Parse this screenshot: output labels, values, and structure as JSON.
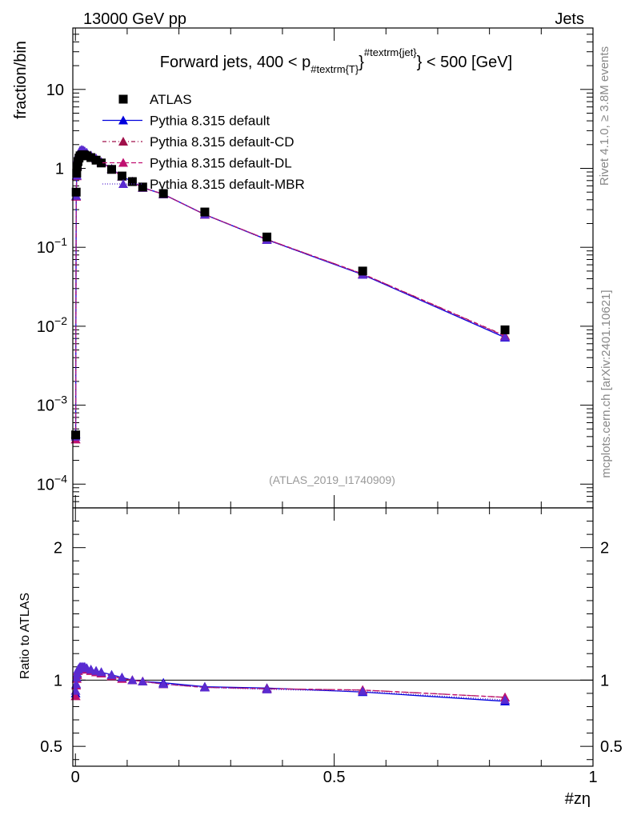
{
  "header": {
    "left": "13000 GeV pp",
    "right": "Jets"
  },
  "side_labels": {
    "rivet": "Rivet 4.1.0, ≥ 3.8M events",
    "mcplots": "mcplots.cern.ch [arXiv:2401.10621]"
  },
  "colors": {
    "atlas": "#000000",
    "default": "#0000dd",
    "cd": "#a0104a",
    "dl": "#c01070",
    "mbr": "#5a2bd0"
  },
  "chart_data": [
    {
      "type": "line",
      "title_parts": {
        "main": "Forward jets, 400 < p",
        "sub": "#textrm{T}",
        "sup": "#textrm{jet}",
        "tail": "} < 500 [GeV]"
      },
      "ylabel": "fraction/bin",
      "yscale": "log",
      "ylim": [
        5e-05,
        60
      ],
      "xlim": [
        -0.005,
        1.0
      ],
      "y_ticks": [
        {
          "value": 10,
          "label": "10"
        },
        {
          "value": 1,
          "label": "1"
        },
        {
          "value": 0.1,
          "label": "10",
          "exp": "−1"
        },
        {
          "value": 0.01,
          "label": "10",
          "exp": "−2"
        },
        {
          "value": 0.001,
          "label": "10",
          "exp": "−3"
        },
        {
          "value": 0.0001,
          "label": "10",
          "exp": "−4"
        }
      ],
      "watermark": "(ATLAS_2019_I1740909)",
      "legend": [
        {
          "key": "atlas",
          "label": "ATLAS",
          "marker": "square",
          "dash": ""
        },
        {
          "key": "default",
          "label": "Pythia 8.315 default",
          "marker": "triangle",
          "dash": ""
        },
        {
          "key": "cd",
          "label": "Pythia 8.315 default-CD",
          "marker": "triangle",
          "dash": "5,3,1,3"
        },
        {
          "key": "dl",
          "label": "Pythia 8.315 default-DL",
          "marker": "triangle",
          "dash": "6,3"
        },
        {
          "key": "mbr",
          "label": "Pythia 8.315 default-MBR",
          "marker": "triangle",
          "dash": "1,2"
        }
      ],
      "x": [
        0.0005,
        0.0015,
        0.0025,
        0.0035,
        0.005,
        0.007,
        0.009,
        0.012,
        0.015,
        0.018,
        0.022,
        0.03,
        0.04,
        0.05,
        0.07,
        0.09,
        0.11,
        0.13,
        0.17,
        0.25,
        0.37,
        0.555,
        0.83
      ],
      "series": [
        {
          "name": "ATLAS",
          "key": "atlas",
          "values": [
            0.00042,
            0.5,
            0.87,
            1.05,
            1.22,
            1.35,
            1.44,
            1.48,
            1.49,
            1.47,
            1.44,
            1.37,
            1.27,
            1.17,
            0.97,
            0.8,
            0.68,
            0.58,
            0.48,
            0.28,
            0.135,
            0.05,
            0.009
          ]
        },
        {
          "name": "Pythia 8.315 default",
          "key": "default",
          "values": [
            0.00043,
            0.45,
            0.82,
            1.1,
            1.38,
            1.58,
            1.68,
            1.72,
            1.7,
            1.65,
            1.58,
            1.46,
            1.34,
            1.21,
            0.99,
            0.79,
            0.68,
            0.57,
            0.47,
            0.26,
            0.125,
            0.045,
            0.0072
          ]
        },
        {
          "name": "Pythia 8.315 default-CD",
          "key": "cd",
          "values": [
            0.00037,
            0.44,
            0.8,
            1.08,
            1.35,
            1.55,
            1.65,
            1.7,
            1.68,
            1.63,
            1.56,
            1.45,
            1.33,
            1.2,
            0.98,
            0.79,
            0.68,
            0.57,
            0.47,
            0.26,
            0.126,
            0.046,
            0.0076
          ]
        },
        {
          "name": "Pythia 8.315 default-DL",
          "key": "dl",
          "values": [
            0.00037,
            0.44,
            0.8,
            1.08,
            1.35,
            1.55,
            1.65,
            1.7,
            1.68,
            1.63,
            1.56,
            1.45,
            1.33,
            1.2,
            0.98,
            0.79,
            0.68,
            0.57,
            0.47,
            0.26,
            0.126,
            0.046,
            0.0075
          ]
        },
        {
          "name": "Pythia 8.315 default-MBR",
          "key": "mbr",
          "values": [
            0.0004,
            0.45,
            0.81,
            1.09,
            1.36,
            1.56,
            1.66,
            1.71,
            1.69,
            1.64,
            1.57,
            1.45,
            1.33,
            1.2,
            0.98,
            0.79,
            0.68,
            0.57,
            0.47,
            0.26,
            0.124,
            0.045,
            0.0073
          ]
        }
      ]
    },
    {
      "type": "line",
      "ylabel": "Ratio to ATLAS",
      "xlabel": "#zη",
      "ylim": [
        0.35,
        2.3
      ],
      "xlim": [
        -0.005,
        1.0
      ],
      "reference": 1,
      "y_ticks": [
        {
          "value": 0.5,
          "label": "0.5"
        },
        {
          "value": 1,
          "label": "1"
        },
        {
          "value": 2,
          "label": "2"
        }
      ],
      "x_ticks": [
        {
          "value": 0,
          "label": "0"
        },
        {
          "value": 0.5,
          "label": "0.5"
        },
        {
          "value": 1,
          "label": "1"
        }
      ],
      "x": [
        0.0005,
        0.0015,
        0.0025,
        0.0035,
        0.005,
        0.007,
        0.009,
        0.012,
        0.015,
        0.018,
        0.022,
        0.03,
        0.04,
        0.05,
        0.07,
        0.09,
        0.11,
        0.13,
        0.17,
        0.25,
        0.37,
        0.555,
        0.83
      ],
      "series": [
        {
          "name": "Pythia 8.315 default",
          "key": "default",
          "values": [
            0.9,
            0.97,
            1.02,
            1.05,
            1.08,
            1.09,
            1.1,
            1.1,
            1.1,
            1.1,
            1.09,
            1.08,
            1.07,
            1.06,
            1.04,
            1.02,
            1.0,
            0.99,
            0.98,
            0.95,
            0.94,
            0.91,
            0.84
          ]
        },
        {
          "name": "Pythia 8.315 default-CD",
          "key": "cd",
          "values": [
            0.88,
            0.96,
            1.01,
            1.04,
            1.07,
            1.08,
            1.09,
            1.09,
            1.09,
            1.09,
            1.08,
            1.07,
            1.06,
            1.05,
            1.03,
            1.01,
            1.0,
            0.99,
            0.97,
            0.945,
            0.935,
            0.925,
            0.87
          ]
        },
        {
          "name": "Pythia 8.315 default-DL",
          "key": "dl",
          "values": [
            0.88,
            0.96,
            1.01,
            1.04,
            1.07,
            1.08,
            1.09,
            1.09,
            1.09,
            1.09,
            1.08,
            1.07,
            1.06,
            1.05,
            1.03,
            1.01,
            1.0,
            0.99,
            0.97,
            0.945,
            0.935,
            0.925,
            0.87
          ]
        },
        {
          "name": "Pythia 8.315 default-MBR",
          "key": "mbr",
          "values": [
            0.92,
            0.97,
            1.02,
            1.05,
            1.08,
            1.09,
            1.1,
            1.1,
            1.1,
            1.1,
            1.09,
            1.08,
            1.07,
            1.06,
            1.04,
            1.02,
            1.0,
            0.99,
            0.97,
            0.945,
            0.93,
            0.915,
            0.85
          ]
        }
      ]
    }
  ]
}
